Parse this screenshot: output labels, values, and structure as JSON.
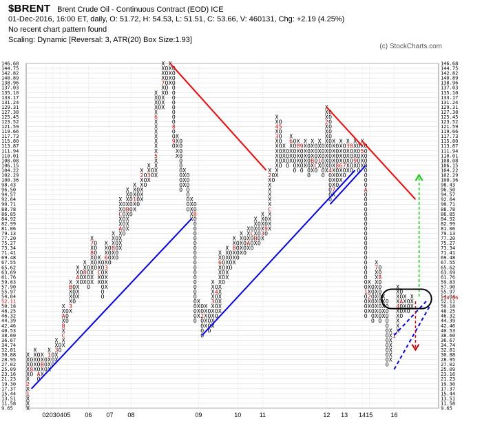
{
  "header": {
    "symbol": "$BRENT",
    "name": "Brent Crude Oil - Continuous Contract (EOD)  ICE",
    "line1": "01-Dec-2016, 16:00 ET, daily, O: 51.72, H: 54.53, L: 51.51, C: 53.66, V: 460131, Chg: +2.19 (4.25%)",
    "line2": "No recent chart pattern found",
    "line3": "Scaling: Dynamic [Reversal: 3, ATR(20) Box Size:1.93]"
  },
  "copyright": "(c) StockCharts.com",
  "colors": {
    "x": "#000000",
    "o": "#000000",
    "month": "#cc0000",
    "resistance": "#ff0000",
    "support": "#0000ff",
    "target_up": "#00cc00",
    "target_down": "#cc0000",
    "ellipse": "#000000",
    "grid": "#d6d6d6"
  },
  "chart_data": {
    "type": "point-and-figure",
    "box_size": 1.93,
    "reversal": 3,
    "price_levels": [
      "146.68",
      "144.75",
      "142.82",
      "140.89",
      "138.96",
      "137.03",
      "135.10",
      "133.17",
      "131.24",
      "129.31",
      "127.38",
      "125.45",
      "123.52",
      "121.59",
      "119.66",
      "117.73",
      "115.80",
      "113.87",
      "111.94",
      "110.01",
      "108.08",
      "106.15",
      "104.22",
      "102.29",
      "100.36",
      "98.43",
      "96.50",
      "94.57",
      "92.64",
      "90.71",
      "88.78",
      "86.85",
      "84.92",
      "82.99",
      "81.06",
      "79.13",
      "77.20",
      "75.27",
      "73.34",
      "71.41",
      "69.48",
      "67.55",
      "65.62",
      "63.69",
      "61.76",
      "59.83",
      "57.90",
      "55.97",
      "54.04",
      "52.11",
      "50.18",
      "48.25",
      "46.32",
      "44.39",
      "42.46",
      "40.53",
      "38.60",
      "36.67",
      "34.74",
      "32.81",
      "30.88",
      "28.95",
      "27.02",
      "25.09",
      "23.16",
      "21.23",
      "19.30",
      "17.37",
      "15.44",
      "13.51",
      "11.58",
      "9.65"
    ],
    "last_price_label": "53.66",
    "left_marker_label": "52.11",
    "x_labels": [
      {
        "label": "02",
        "col": 5
      },
      {
        "label": "03",
        "col": 7
      },
      {
        "label": "04",
        "col": 9
      },
      {
        "label": "05",
        "col": 11
      },
      {
        "label": "06",
        "col": 17
      },
      {
        "label": "07",
        "col": 23
      },
      {
        "label": "08",
        "col": 29
      },
      {
        "label": "09",
        "col": 48
      },
      {
        "label": "10",
        "col": 59
      },
      {
        "label": "11",
        "col": 66
      },
      {
        "label": "12",
        "col": 84
      },
      {
        "label": "13",
        "col": 89
      },
      {
        "label": "14",
        "col": 94
      },
      {
        "label": "15",
        "col": 96
      },
      {
        "label": "16",
        "col": 103
      }
    ],
    "columns": [
      {
        "type": "X",
        "low": 9.65,
        "high": 30.88
      },
      {
        "type": "O",
        "low": 23.16,
        "high": 28.95
      },
      {
        "type": "X",
        "low": 25.09,
        "high": 32.81
      },
      {
        "type": "O",
        "low": 21.23,
        "high": 30.88
      },
      {
        "type": "X",
        "low": 23.16,
        "high": 30.88
      },
      {
        "type": "O",
        "low": 25.09,
        "high": 28.95
      },
      {
        "type": "X",
        "low": 25.09,
        "high": 32.81
      },
      {
        "type": "O",
        "low": 27.02,
        "high": 30.88
      },
      {
        "type": "X",
        "low": 28.95,
        "high": 36.67
      },
      {
        "type": "O",
        "low": 32.81,
        "high": 34.74
      },
      {
        "type": "X",
        "low": 34.74,
        "high": 50.18
      },
      {
        "type": "O",
        "low": 44.39,
        "high": 48.25
      },
      {
        "type": "X",
        "low": 48.25,
        "high": 59.83
      },
      {
        "type": "O",
        "low": 52.11,
        "high": 57.9
      },
      {
        "type": "X",
        "low": 54.04,
        "high": 65.62
      },
      {
        "type": "O",
        "low": 59.83,
        "high": 63.69
      },
      {
        "type": "X",
        "low": 59.83,
        "high": 67.55
      },
      {
        "type": "O",
        "low": 57.9,
        "high": 65.62
      },
      {
        "type": "X",
        "low": 59.83,
        "high": 77.2
      },
      {
        "type": "O",
        "low": 65.62,
        "high": 75.27
      },
      {
        "type": "X",
        "low": 59.83,
        "high": 69.48
      },
      {
        "type": "O",
        "low": 54.04,
        "high": 67.55
      },
      {
        "type": "X",
        "low": 57.9,
        "high": 75.27
      },
      {
        "type": "O",
        "low": 67.55,
        "high": 73.34
      },
      {
        "type": "X",
        "low": 69.48,
        "high": 79.13
      },
      {
        "type": "O",
        "low": 69.48,
        "high": 77.2
      },
      {
        "type": "X",
        "low": 73.34,
        "high": 92.64
      },
      {
        "type": "O",
        "low": 79.13,
        "high": 90.71
      },
      {
        "type": "X",
        "low": 81.06,
        "high": 96.5
      },
      {
        "type": "O",
        "low": 86.85,
        "high": 94.57
      },
      {
        "type": "X",
        "low": 88.78,
        "high": 98.43
      },
      {
        "type": "O",
        "low": 90.71,
        "high": 96.5
      },
      {
        "type": "X",
        "low": 92.64,
        "high": 104.22
      },
      {
        "type": "O",
        "low": 98.43,
        "high": 102.29
      },
      {
        "type": "X",
        "low": 100.36,
        "high": 106.15
      },
      {
        "type": "O",
        "low": 102.29,
        "high": 104.22
      },
      {
        "type": "X",
        "low": 102.29,
        "high": 135.1
      },
      {
        "type": "O",
        "low": 129.31,
        "high": 133.17
      },
      {
        "type": "X",
        "low": 129.31,
        "high": 146.68
      },
      {
        "type": "O",
        "low": 135.1,
        "high": 144.75
      },
      {
        "type": "X",
        "low": 138.96,
        "high": 146.68
      },
      {
        "type": "O",
        "low": 113.87,
        "high": 144.75
      },
      {
        "type": "X",
        "low": 110.01,
        "high": 117.73
      },
      {
        "type": "O",
        "low": 96.5,
        "high": 115.8
      },
      {
        "type": "X",
        "low": 98.43,
        "high": 104.22
      },
      {
        "type": "O",
        "low": 88.78,
        "high": 102.29
      },
      {
        "type": "X",
        "low": 84.92,
        "high": 92.64
      },
      {
        "type": "O",
        "low": 44.39,
        "high": 90.71
      },
      {
        "type": "X",
        "low": 46.32,
        "high": 52.11
      },
      {
        "type": "O",
        "low": 38.6,
        "high": 50.18
      },
      {
        "type": "X",
        "low": 42.46,
        "high": 50.18
      },
      {
        "type": "O",
        "low": 40.53,
        "high": 48.25
      },
      {
        "type": "X",
        "low": 42.46,
        "high": 59.83
      },
      {
        "type": "O",
        "low": 46.32,
        "high": 57.9
      },
      {
        "type": "X",
        "low": 48.25,
        "high": 71.41
      },
      {
        "type": "O",
        "low": 59.83,
        "high": 69.48
      },
      {
        "type": "X",
        "low": 61.76,
        "high": 73.34
      },
      {
        "type": "O",
        "low": 65.62,
        "high": 71.41
      },
      {
        "type": "X",
        "low": 67.55,
        "high": 77.2
      },
      {
        "type": "O",
        "low": 69.48,
        "high": 75.27
      },
      {
        "type": "X",
        "low": 71.41,
        "high": 79.13
      },
      {
        "type": "O",
        "low": 71.41,
        "high": 77.2
      },
      {
        "type": "X",
        "low": 73.34,
        "high": 81.06
      },
      {
        "type": "O",
        "low": 73.34,
        "high": 81.06
      },
      {
        "type": "X",
        "low": 75.27,
        "high": 84.92
      },
      {
        "type": "O",
        "low": 75.27,
        "high": 82.99
      },
      {
        "type": "X",
        "low": 77.2,
        "high": 86.85
      },
      {
        "type": "O",
        "low": 79.13,
        "high": 84.92
      },
      {
        "type": "X",
        "low": 81.06,
        "high": 104.22
      },
      {
        "type": "O",
        "low": 100.36,
        "high": 102.29
      },
      {
        "type": "X",
        "low": 102.29,
        "high": 125.45
      },
      {
        "type": "O",
        "low": 106.15,
        "high": 123.52
      },
      {
        "type": "X",
        "low": 108.08,
        "high": 113.87
      },
      {
        "type": "O",
        "low": 106.15,
        "high": 111.94
      },
      {
        "type": "X",
        "low": 108.08,
        "high": 117.73
      },
      {
        "type": "O",
        "low": 104.22,
        "high": 115.8
      },
      {
        "type": "X",
        "low": 106.15,
        "high": 115.8
      },
      {
        "type": "O",
        "low": 104.22,
        "high": 113.87
      },
      {
        "type": "X",
        "low": 106.15,
        "high": 115.8
      },
      {
        "type": "O",
        "low": 102.29,
        "high": 113.87
      },
      {
        "type": "X",
        "low": 104.22,
        "high": 115.8
      },
      {
        "type": "O",
        "low": 104.22,
        "high": 113.87
      },
      {
        "type": "X",
        "low": 106.15,
        "high": 115.8
      },
      {
        "type": "O",
        "low": 102.29,
        "high": 113.87
      },
      {
        "type": "X",
        "low": 104.22,
        "high": 129.31
      },
      {
        "type": "O",
        "low": 92.64,
        "high": 127.38
      },
      {
        "type": "X",
        "low": 94.57,
        "high": 115.8
      },
      {
        "type": "O",
        "low": 98.43,
        "high": 113.87
      },
      {
        "type": "X",
        "low": 100.36,
        "high": 115.8
      },
      {
        "type": "O",
        "low": 102.29,
        "high": 113.87
      },
      {
        "type": "X",
        "low": 104.22,
        "high": 115.8
      },
      {
        "type": "O",
        "low": 104.22,
        "high": 113.87
      },
      {
        "type": "X",
        "low": 106.15,
        "high": 115.8
      },
      {
        "type": "O",
        "low": 104.22,
        "high": 113.87
      },
      {
        "type": "X",
        "low": 106.15,
        "high": 115.8
      },
      {
        "type": "O",
        "low": 46.32,
        "high": 113.87
      },
      {
        "type": "X",
        "low": 48.25,
        "high": 59.83
      },
      {
        "type": "O",
        "low": 44.39,
        "high": 57.9
      },
      {
        "type": "X",
        "low": 46.32,
        "high": 67.55
      },
      {
        "type": "O",
        "low": 44.39,
        "high": 65.62
      },
      {
        "type": "X",
        "low": 46.32,
        "high": 54.04
      },
      {
        "type": "O",
        "low": 27.02,
        "high": 52.11
      },
      {
        "type": "X",
        "low": 28.95,
        "high": 40.53
      },
      {
        "type": "O",
        "low": 38.6,
        "high": 38.6
      },
      {
        "type": "X",
        "low": 40.53,
        "high": 57.9
      },
      {
        "type": "O",
        "low": 46.32,
        "high": 55.97
      },
      {
        "type": "X",
        "low": 48.25,
        "high": 54.04
      },
      {
        "type": "O",
        "low": 48.25,
        "high": 52.11
      },
      {
        "type": "X",
        "low": 50.18,
        "high": 54.04
      }
    ],
    "month_marks": [
      {
        "col": 0,
        "price": 15.44,
        "m": "1"
      },
      {
        "col": 0,
        "price": 19.3,
        "m": "2"
      },
      {
        "col": 1,
        "price": 25.09,
        "m": "8"
      },
      {
        "col": 3,
        "price": 23.16,
        "m": "A"
      },
      {
        "col": 4,
        "price": 27.02,
        "m": "B"
      },
      {
        "col": 6,
        "price": 30.88,
        "m": "1"
      },
      {
        "col": 8,
        "price": 32.81,
        "m": "3"
      },
      {
        "col": 10,
        "price": 38.6,
        "m": "C"
      },
      {
        "col": 10,
        "price": 42.46,
        "m": "B"
      },
      {
        "col": 10,
        "price": 46.32,
        "m": "A"
      },
      {
        "col": 12,
        "price": 50.18,
        "m": "3"
      },
      {
        "col": 12,
        "price": 57.9,
        "m": "B"
      },
      {
        "col": 14,
        "price": 61.76,
        "m": "A"
      },
      {
        "col": 16,
        "price": 63.69,
        "m": "8"
      },
      {
        "col": 18,
        "price": 71.41,
        "m": "8"
      },
      {
        "col": 18,
        "price": 75.27,
        "m": "7"
      },
      {
        "col": 20,
        "price": 63.69,
        "m": "C"
      },
      {
        "col": 22,
        "price": 65.62,
        "m": "3"
      },
      {
        "col": 22,
        "price": 69.48,
        "m": "6"
      },
      {
        "col": 24,
        "price": 73.34,
        "m": "8"
      },
      {
        "col": 26,
        "price": 81.06,
        "m": "A"
      },
      {
        "col": 26,
        "price": 86.85,
        "m": "C"
      },
      {
        "col": 28,
        "price": 88.78,
        "m": "B"
      },
      {
        "col": 30,
        "price": 92.64,
        "m": "1"
      },
      {
        "col": 32,
        "price": 102.29,
        "m": "2"
      },
      {
        "col": 34,
        "price": 102.29,
        "m": "3"
      },
      {
        "col": 36,
        "price": 110.01,
        "m": "5"
      },
      {
        "col": 36,
        "price": 125.45,
        "m": "6"
      },
      {
        "col": 38,
        "price": 138.96,
        "m": "7"
      },
      {
        "col": 41,
        "price": 121.59,
        "m": "8"
      },
      {
        "col": 41,
        "price": 115.8,
        "m": "9"
      },
      {
        "col": 47,
        "price": 86.85,
        "m": "B"
      },
      {
        "col": 49,
        "price": 46.32,
        "m": "2"
      },
      {
        "col": 52,
        "price": 52.11,
        "m": "3"
      },
      {
        "col": 53,
        "price": 55.97,
        "m": "4"
      },
      {
        "col": 53,
        "price": 59.83,
        "m": "5"
      },
      {
        "col": 54,
        "price": 67.55,
        "m": "6"
      },
      {
        "col": 55,
        "price": 71.41,
        "m": "7"
      },
      {
        "col": 58,
        "price": 73.34,
        "m": "8"
      },
      {
        "col": 59,
        "price": 77.2,
        "m": "9"
      },
      {
        "col": 62,
        "price": 75.27,
        "m": "A"
      },
      {
        "col": 63,
        "price": 79.13,
        "m": "C"
      },
      {
        "col": 64,
        "price": 77.2,
        "m": "B"
      },
      {
        "col": 66,
        "price": 79.13,
        "m": "3"
      },
      {
        "col": 67,
        "price": 81.06,
        "m": "9"
      },
      {
        "col": 68,
        "price": 88.78,
        "m": "C"
      },
      {
        "col": 68,
        "price": 102.29,
        "m": "2"
      },
      {
        "col": 70,
        "price": 117.73,
        "m": "3"
      },
      {
        "col": 70,
        "price": 121.59,
        "m": "4"
      },
      {
        "col": 71,
        "price": 121.59,
        "m": "5"
      },
      {
        "col": 74,
        "price": 115.8,
        "m": "6"
      },
      {
        "col": 76,
        "price": 113.87,
        "m": "8"
      },
      {
        "col": 77,
        "price": 113.87,
        "m": "9"
      },
      {
        "col": 78,
        "price": 104.22,
        "m": "A"
      },
      {
        "col": 80,
        "price": 108.08,
        "m": "B"
      },
      {
        "col": 81,
        "price": 106.15,
        "m": "C"
      },
      {
        "col": 82,
        "price": 108.08,
        "m": "1"
      },
      {
        "col": 84,
        "price": 123.52,
        "m": "2"
      },
      {
        "col": 85,
        "price": 104.22,
        "m": "4"
      },
      {
        "col": 86,
        "price": 96.5,
        "m": "7"
      },
      {
        "col": 87,
        "price": 106.15,
        "m": "8"
      },
      {
        "col": 88,
        "price": 106.15,
        "m": "6"
      },
      {
        "col": 89,
        "price": 106.15,
        "m": "7"
      },
      {
        "col": 90,
        "price": 113.87,
        "m": "3"
      },
      {
        "col": 91,
        "price": 113.87,
        "m": "8"
      },
      {
        "col": 92,
        "price": 108.08,
        "m": "9"
      },
      {
        "col": 94,
        "price": 111.94,
        "m": "5"
      },
      {
        "col": 95,
        "price": 96.5,
        "m": "A"
      },
      {
        "col": 95,
        "price": 55.97,
        "m": "1"
      },
      {
        "col": 96,
        "price": 54.04,
        "m": "2"
      },
      {
        "col": 98,
        "price": 65.62,
        "m": "7"
      },
      {
        "col": 99,
        "price": 61.76,
        "m": "8"
      },
      {
        "col": 100,
        "price": 67.55,
        "m": "5"
      },
      {
        "col": 102,
        "price": 48.25,
        "m": "C"
      },
      {
        "col": 103,
        "price": 38.6,
        "m": "1"
      },
      {
        "col": 104,
        "price": 50.18,
        "m": "4"
      },
      {
        "col": 105,
        "price": 52.11,
        "m": "A"
      }
    ],
    "trend_lines": [
      {
        "type": "resistance",
        "from": {
          "col": 40,
          "price": 146.68
        },
        "to": {
          "col": 67,
          "price": 104.22
        }
      },
      {
        "type": "resistance",
        "from": {
          "col": 84,
          "price": 129.31
        },
        "to": {
          "col": 94,
          "price": 113.87
        }
      },
      {
        "type": "resistance",
        "from": {
          "col": 94,
          "price": 115.8
        },
        "to": {
          "col": 109,
          "price": 92.64
        }
      },
      {
        "type": "support",
        "from": {
          "col": 1,
          "price": 17.37
        },
        "to": {
          "col": 46,
          "price": 84.92
        }
      },
      {
        "type": "support",
        "from": {
          "col": 49,
          "price": 38.6
        },
        "to": {
          "col": 92,
          "price": 104.22
        }
      },
      {
        "type": "support",
        "from": {
          "col": 85,
          "price": 90.71
        },
        "to": {
          "col": 95,
          "price": 106.15
        }
      },
      {
        "type": "support",
        "from": {
          "col": 96,
          "price": 48.25
        },
        "to": {
          "col": 96,
          "price": 48.25
        },
        "dashed": false
      },
      {
        "type": "support",
        "from": {
          "col": 103,
          "price": 25.09
        },
        "to": {
          "col": 113,
          "price": 50.18
        },
        "dashed": true
      },
      {
        "type": "support",
        "from": {
          "col": 103,
          "price": 38.6
        },
        "to": {
          "col": 112,
          "price": 52.11
        },
        "dashed": true
      }
    ],
    "targets": [
      {
        "type": "up",
        "col": 110,
        "from": 54.04,
        "to": 102.29
      },
      {
        "type": "down",
        "col": 109,
        "from": 52.11,
        "to": 32.81
      }
    ],
    "highlight": {
      "col_from": 100,
      "col_to": 113,
      "price_from": 50.18,
      "price_to": 55.97
    }
  }
}
